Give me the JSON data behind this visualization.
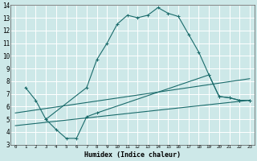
{
  "xlabel": "Humidex (Indice chaleur)",
  "xlim": [
    -0.5,
    23.5
  ],
  "ylim": [
    3,
    14
  ],
  "xticks": [
    0,
    1,
    2,
    3,
    4,
    5,
    6,
    7,
    8,
    9,
    10,
    11,
    12,
    13,
    14,
    15,
    16,
    17,
    18,
    19,
    20,
    21,
    22,
    23
  ],
  "yticks": [
    3,
    4,
    5,
    6,
    7,
    8,
    9,
    10,
    11,
    12,
    13,
    14
  ],
  "bg_color": "#cde8e8",
  "grid_color": "#ffffff",
  "line_color": "#1a6b6b",
  "lines": [
    {
      "x": [
        1,
        2,
        3,
        7,
        8,
        9,
        10,
        11,
        12,
        13,
        14,
        15,
        16,
        17,
        18,
        19,
        20,
        21,
        22,
        23
      ],
      "y": [
        7.5,
        6.5,
        5.0,
        7.5,
        9.7,
        11.0,
        12.5,
        13.2,
        13.0,
        13.2,
        13.8,
        13.35,
        13.1,
        11.7,
        10.3,
        8.5,
        6.8,
        6.7,
        6.5,
        6.5
      ],
      "marker": true
    },
    {
      "x": [
        3,
        4,
        5,
        6,
        7,
        8,
        19,
        20,
        21,
        22,
        23
      ],
      "y": [
        5.0,
        4.2,
        3.5,
        3.5,
        5.2,
        5.5,
        8.5,
        6.8,
        6.7,
        6.5,
        6.5
      ],
      "marker": true
    },
    {
      "x": [
        0,
        23
      ],
      "y": [
        5.5,
        8.2
      ],
      "marker": false
    },
    {
      "x": [
        0,
        23
      ],
      "y": [
        4.5,
        6.5
      ],
      "marker": false
    }
  ]
}
